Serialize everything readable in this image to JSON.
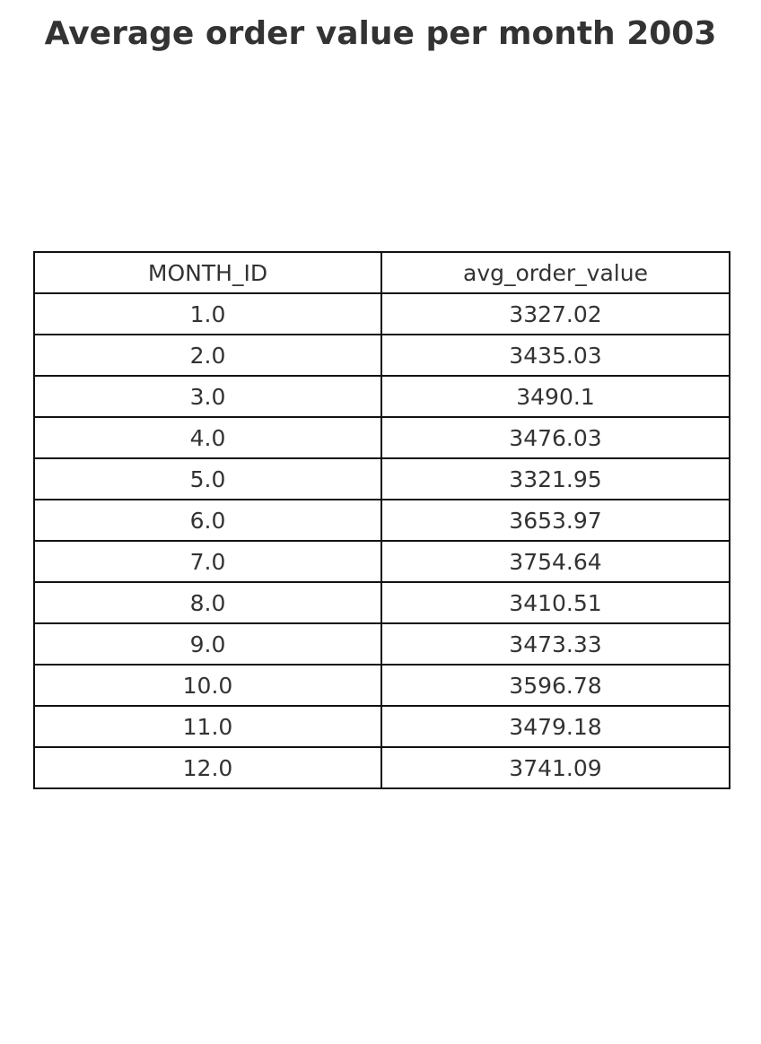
{
  "chart_data": {
    "type": "table",
    "title": "Average order value per month 2003",
    "columns": [
      "MONTH_ID",
      "avg_order_value"
    ],
    "rows": [
      [
        "1.0",
        "3327.02"
      ],
      [
        "2.0",
        "3435.03"
      ],
      [
        "3.0",
        "3490.1"
      ],
      [
        "4.0",
        "3476.03"
      ],
      [
        "5.0",
        "3321.95"
      ],
      [
        "6.0",
        "3653.97"
      ],
      [
        "7.0",
        "3754.64"
      ],
      [
        "8.0",
        "3410.51"
      ],
      [
        "9.0",
        "3473.33"
      ],
      [
        "10.0",
        "3596.78"
      ],
      [
        "11.0",
        "3479.18"
      ],
      [
        "12.0",
        "3741.09"
      ]
    ]
  }
}
